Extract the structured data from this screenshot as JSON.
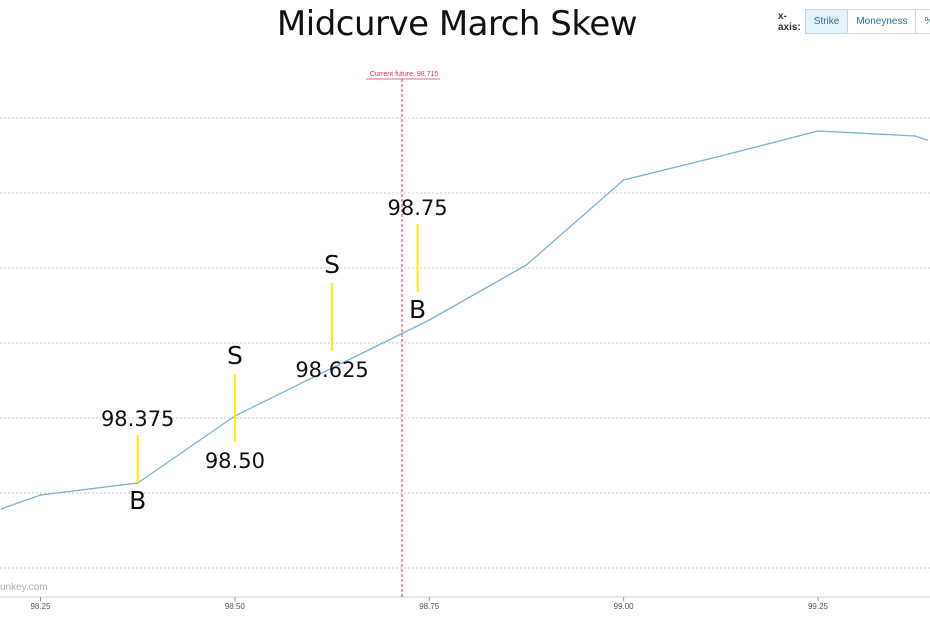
{
  "chart_data": {
    "type": "line",
    "title": "Midcurve March Skew",
    "xlabel": "",
    "ylabel": "",
    "xlim": [
      98.2,
      99.39
    ],
    "x_ticks": [
      "98.25",
      "98.50",
      "98.75",
      "99.00",
      "99.25"
    ],
    "grid": "horizontal dashed",
    "series": [
      {
        "color": "#7ab3d6",
        "points": [
          {
            "x": 98.2,
            "y": 8.2
          },
          {
            "x": 98.25,
            "y": 22
          },
          {
            "x": 98.375,
            "y": 34
          },
          {
            "x": 98.5,
            "y": 101
          },
          {
            "x": 98.625,
            "y": 149
          },
          {
            "x": 98.75,
            "y": 197
          },
          {
            "x": 98.875,
            "y": 252
          },
          {
            "x": 99.0,
            "y": 337
          },
          {
            "x": 99.125,
            "y": 361
          },
          {
            "x": 99.25,
            "y": 386
          },
          {
            "x": 99.375,
            "y": 381
          },
          {
            "x": 99.39,
            "y": 377
          }
        ]
      }
    ],
    "current_future": {
      "value": 98.715,
      "label": "Current future: 98.715",
      "color": "#e0306a"
    },
    "annotations": [
      {
        "strike": "98.375",
        "x": 98.375,
        "side": "B",
        "label_position": "above",
        "bar_from": 34,
        "bar_to": 82
      },
      {
        "strike": "98.50",
        "x": 98.5,
        "side": "S",
        "label_position": "below",
        "bar_from": 75,
        "bar_to": 143
      },
      {
        "strike": "98.625",
        "x": 98.625,
        "side": "S",
        "label_position": "below",
        "bar_from": 166,
        "bar_to": 234
      },
      {
        "strike": "98.75",
        "x": 98.735,
        "side": "B",
        "label_position": "above",
        "bar_from": 225,
        "bar_to": 293
      }
    ],
    "annotation_color": "#ffee00"
  },
  "controls": {
    "xaxis_label": "x-axis:",
    "buttons": [
      {
        "label": "Strike",
        "active": true
      },
      {
        "label": "Moneyness",
        "active": false
      },
      {
        "label": "%",
        "active": false
      }
    ]
  },
  "watermark": "unkey.com"
}
